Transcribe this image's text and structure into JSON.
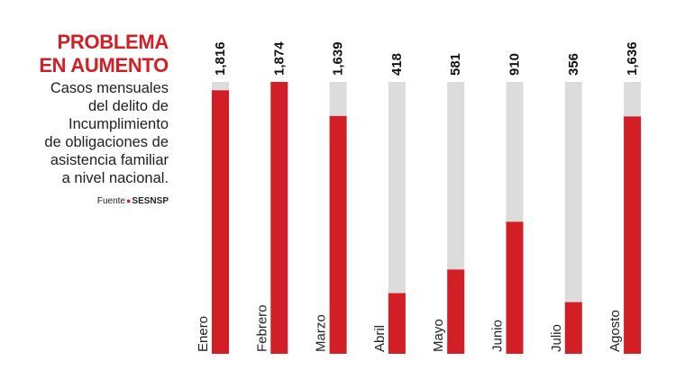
{
  "header": {
    "title_line1": "PROBLEMA",
    "title_line2": "EN AUMENTO",
    "subtitle_line1": "Casos mensuales",
    "subtitle_line2": "del delito de",
    "subtitle_line3": "Incumplimiento",
    "subtitle_line4": "de obligaciones de",
    "subtitle_line5": "asistencia familiar",
    "subtitle_line6": "a nivel nacional.",
    "source_label": "Fuente",
    "source_org": "SESNSP"
  },
  "colors": {
    "bar": "#d21f26",
    "track": "#dcdcdc",
    "title": "#d21f26"
  },
  "chart_data": {
    "type": "bar",
    "orientation": "vertical",
    "categories": [
      "Enero",
      "Febrero",
      "Marzo",
      "Abril",
      "Mayo",
      "Junio",
      "Julio",
      "Agosto"
    ],
    "values": [
      1816,
      1874,
      1639,
      418,
      581,
      910,
      356,
      1636
    ],
    "value_labels": [
      "1,816",
      "1,874",
      "1,639",
      "418",
      "581",
      "910",
      "356",
      "1,636"
    ],
    "ylim": [
      0,
      1874
    ],
    "grid": false,
    "legend": "none"
  }
}
